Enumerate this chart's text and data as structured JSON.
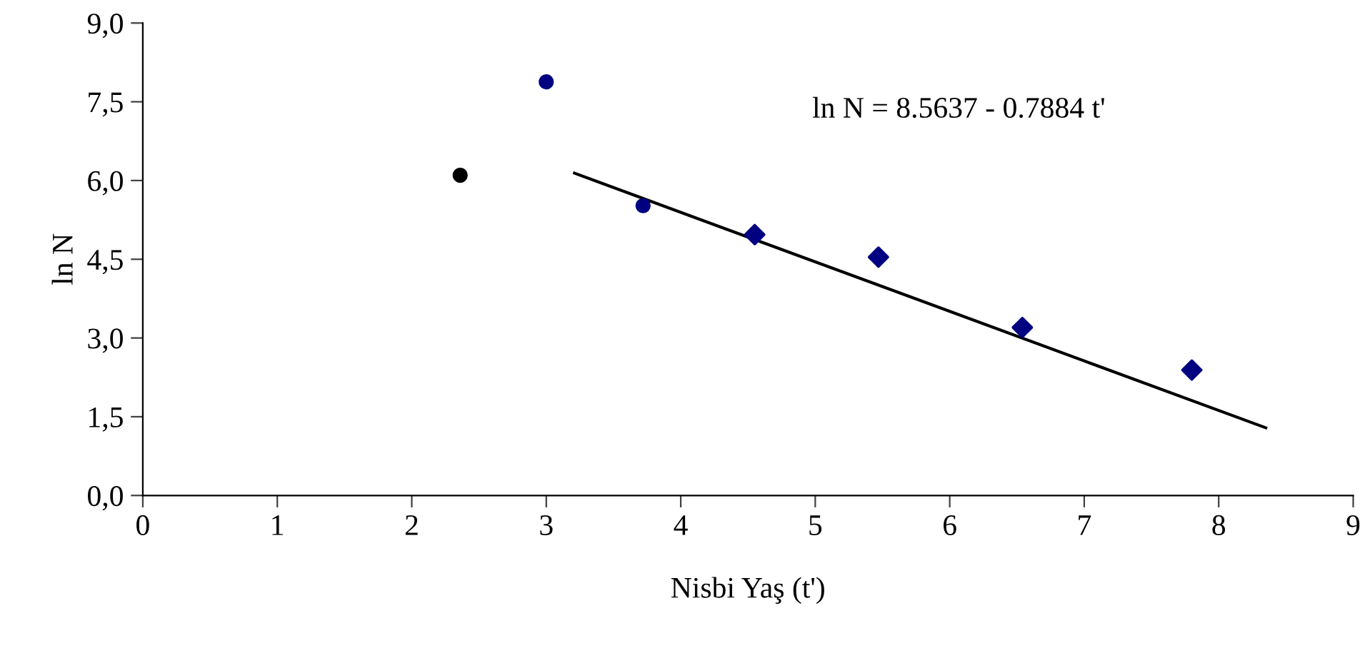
{
  "chart_data": {
    "type": "scatter",
    "xlabel": "Nisbi Yaş (t')",
    "ylabel": "ln N",
    "xlim": [
      0,
      9
    ],
    "xticks": [
      0,
      1,
      2,
      3,
      4,
      5,
      6,
      7,
      8,
      9
    ],
    "ylim": [
      0,
      9
    ],
    "yticks": [
      {
        "value": 0,
        "label": "0,0"
      },
      {
        "value": 1.5,
        "label": "1,5"
      },
      {
        "value": 3,
        "label": "3,0"
      },
      {
        "value": 4.5,
        "label": "4,5"
      },
      {
        "value": 6,
        "label": "6,0"
      },
      {
        "value": 7.5,
        "label": "7,5"
      },
      {
        "value": 9,
        "label": "9,0"
      }
    ],
    "grid": false,
    "legend": false,
    "annotations": [
      "ln N = 8.5637 - 0.7884 t'"
    ],
    "series": [
      {
        "marker": "circle",
        "color": "#000000",
        "x": [
          2.36
        ],
        "values": [
          6.1
        ]
      },
      {
        "marker": "circle",
        "color": "#000080",
        "x": [
          3.0
        ],
        "values": [
          7.88
        ]
      },
      {
        "marker": "circle",
        "color": "#000080",
        "x": [
          3.72
        ],
        "values": [
          5.52
        ]
      },
      {
        "marker": "diamond",
        "color": "#000080",
        "x": [
          4.55,
          5.47,
          6.54,
          7.8
        ],
        "values": [
          4.97,
          4.54,
          3.2,
          2.39
        ]
      },
      {
        "type": "line",
        "marker": "none",
        "color": "#000000",
        "x": [
          3.21,
          8.35
        ],
        "values": [
          6.14,
          1.29
        ]
      }
    ]
  }
}
